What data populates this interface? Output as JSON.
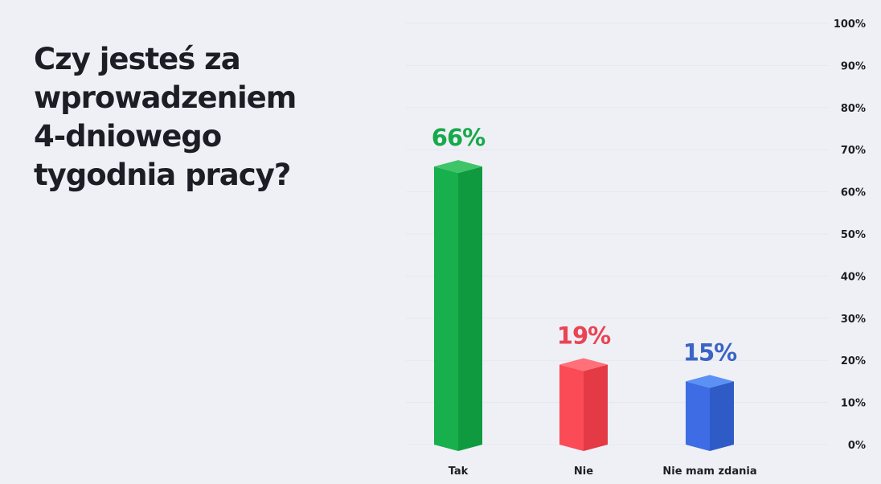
{
  "chart_data": {
    "type": "bar",
    "title_lines": [
      "Czy jesteś za",
      "wprowadzeniem",
      "4-dniowego",
      "tygodnia pracy?"
    ],
    "categories": [
      "Tak",
      "Nie",
      "Nie mam zdania"
    ],
    "values": [
      66,
      19,
      15
    ],
    "data_labels": [
      "66%",
      "19%",
      "15%"
    ],
    "ylim": [
      0,
      100
    ],
    "yticks": [
      0,
      10,
      20,
      30,
      40,
      50,
      60,
      70,
      80,
      90,
      100
    ],
    "ytick_labels": [
      "0%",
      "10%",
      "20%",
      "30%",
      "40%",
      "50%",
      "60%",
      "70%",
      "80%",
      "90%",
      "100%"
    ],
    "y_axis_position": "right",
    "grid": true,
    "colors": {
      "Tak": {
        "top": "#3fc468",
        "front": "#17b04c",
        "side": "#0f9a3f",
        "label": "#17a94a"
      },
      "Nie": {
        "top": "#ff7078",
        "front": "#fa4b57",
        "side": "#e33a46",
        "label": "#ea4452"
      },
      "Nie mam zdania": {
        "top": "#5b90f5",
        "front": "#3d6ce5",
        "side": "#2f5bc6",
        "label": "#3a64c5"
      }
    }
  }
}
